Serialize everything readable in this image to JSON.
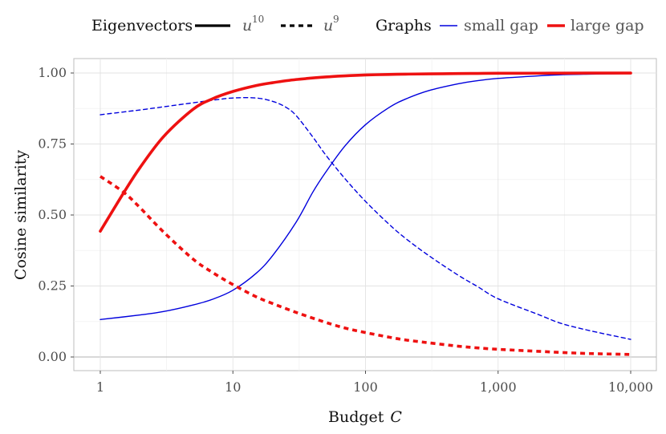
{
  "chart_data": {
    "type": "line",
    "title": "",
    "xlabel": "Budget",
    "xlabel_var": "C",
    "ylabel": "Cosine similarity",
    "x_scale": "log10",
    "xlim": [
      1,
      10000
    ],
    "ylim": [
      0,
      1
    ],
    "x_ticks": [
      1,
      10,
      100,
      1000,
      10000
    ],
    "x_tick_labels": [
      "1",
      "10",
      "100",
      "1,000",
      "10,000"
    ],
    "y_ticks": [
      0,
      0.25,
      0.5,
      0.75,
      1.0
    ],
    "y_tick_labels": [
      "0.00",
      "0.25",
      "0.50",
      "0.75",
      "1.00"
    ],
    "legend": {
      "position": "top",
      "eigenvectors_title": "Eigenvectors",
      "graphs_title": "Graphs",
      "eigenvectors": [
        {
          "base": "u",
          "sup": "10",
          "linetype": "solid"
        },
        {
          "base": "u",
          "sup": "9",
          "linetype": "dashed"
        }
      ],
      "graphs": [
        {
          "label": "small gap",
          "color": "#0000dd"
        },
        {
          "label": "large gap",
          "color": "#ee1111"
        }
      ]
    },
    "series": [
      {
        "name": "small gap u10",
        "graph": "small gap",
        "eigenvector": "u10",
        "color": "#0000dd",
        "dash": false,
        "x": [
          1,
          2,
          3,
          5,
          7,
          10,
          15,
          20,
          30,
          40,
          50,
          70,
          100,
          150,
          200,
          300,
          500,
          700,
          1000,
          2000,
          3000,
          5000,
          10000
        ],
        "y": [
          0.132,
          0.148,
          0.16,
          0.183,
          0.203,
          0.235,
          0.295,
          0.358,
          0.475,
          0.58,
          0.65,
          0.743,
          0.818,
          0.878,
          0.908,
          0.938,
          0.962,
          0.973,
          0.981,
          0.99,
          0.994,
          0.996,
          0.998
        ]
      },
      {
        "name": "small gap u9",
        "graph": "small gap",
        "eigenvector": "u9",
        "color": "#0000dd",
        "dash": true,
        "x": [
          1,
          2,
          3,
          5,
          7,
          10,
          15,
          20,
          25,
          30,
          40,
          50,
          70,
          100,
          150,
          200,
          300,
          500,
          700,
          1000,
          2000,
          3000,
          5000,
          10000
        ],
        "y": [
          0.853,
          0.87,
          0.881,
          0.895,
          0.904,
          0.912,
          0.912,
          0.9,
          0.88,
          0.85,
          0.775,
          0.712,
          0.628,
          0.548,
          0.468,
          0.418,
          0.357,
          0.288,
          0.248,
          0.205,
          0.15,
          0.118,
          0.092,
          0.062
        ]
      },
      {
        "name": "large gap u10",
        "graph": "large gap",
        "eigenvector": "u10",
        "color": "#ee1111",
        "dash": false,
        "x": [
          1,
          1.5,
          2,
          3,
          5,
          7,
          10,
          15,
          20,
          30,
          50,
          70,
          100,
          150,
          200,
          300,
          500,
          700,
          1000,
          2000,
          3000,
          5000,
          10000
        ],
        "y": [
          0.443,
          0.578,
          0.668,
          0.776,
          0.872,
          0.909,
          0.935,
          0.956,
          0.966,
          0.977,
          0.986,
          0.99,
          0.993,
          0.995,
          0.996,
          0.997,
          0.998,
          0.9985,
          0.999,
          0.9993,
          0.9995,
          0.9997,
          0.9998
        ]
      },
      {
        "name": "large gap u9",
        "graph": "large gap",
        "eigenvector": "u9",
        "color": "#ee1111",
        "dash": true,
        "x": [
          1,
          1.5,
          2,
          3,
          5,
          7,
          10,
          15,
          20,
          30,
          50,
          70,
          100,
          150,
          200,
          300,
          500,
          700,
          1000,
          2000,
          3000,
          5000,
          10000
        ],
        "y": [
          0.636,
          0.58,
          0.525,
          0.44,
          0.345,
          0.298,
          0.255,
          0.212,
          0.188,
          0.157,
          0.122,
          0.102,
          0.086,
          0.07,
          0.06,
          0.05,
          0.038,
          0.032,
          0.027,
          0.02,
          0.016,
          0.012,
          0.009
        ]
      }
    ]
  }
}
